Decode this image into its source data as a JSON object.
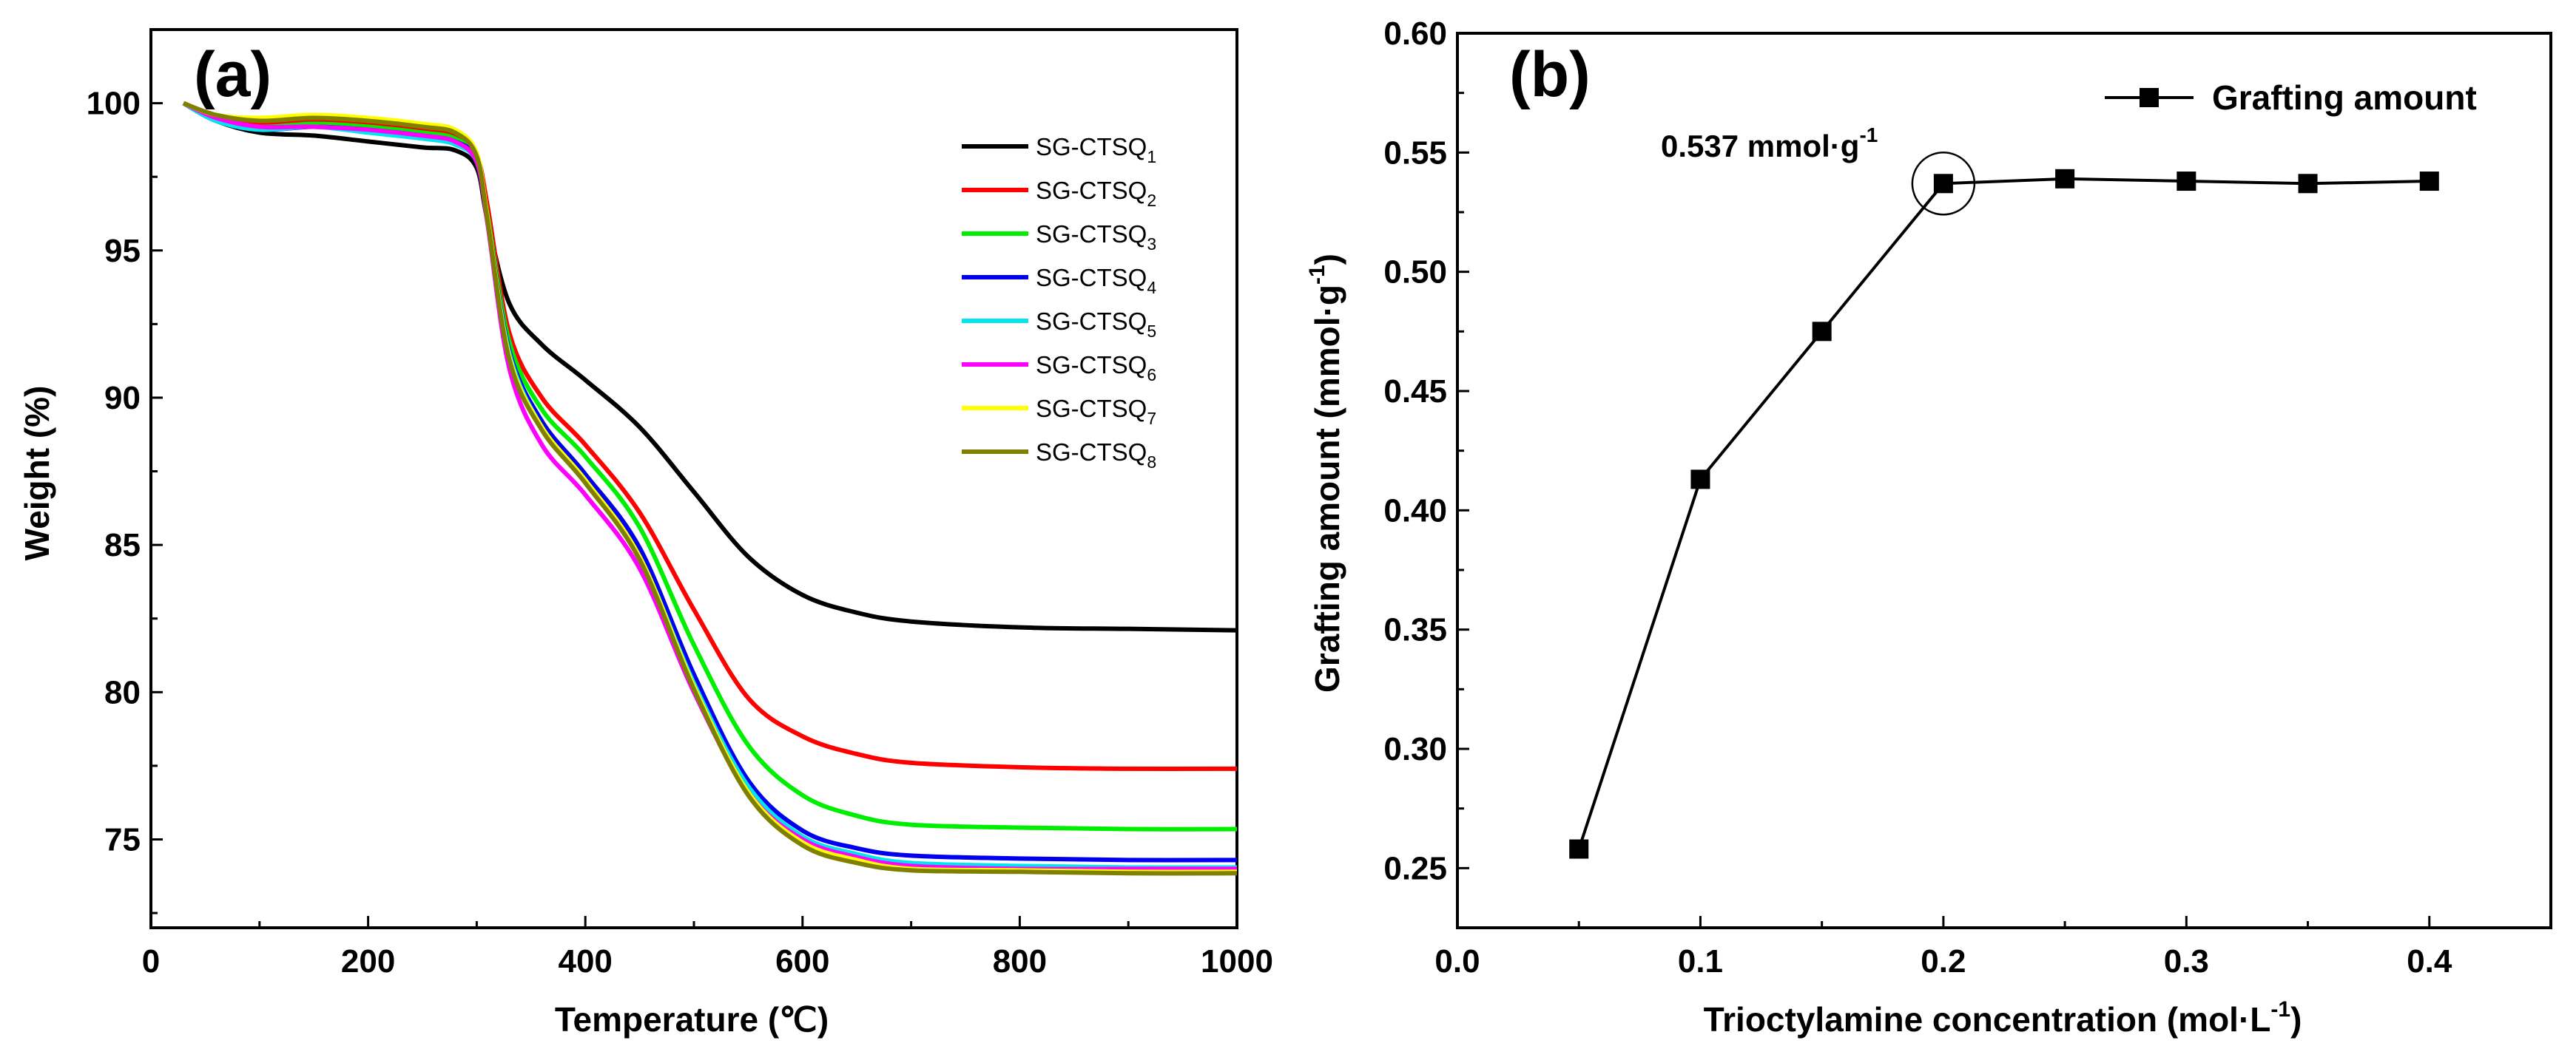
{
  "figure": {
    "panel_a_label": "(a)",
    "panel_b_label": "(b)"
  },
  "chart_data": [
    {
      "type": "line",
      "panel": "(a)",
      "title": "",
      "xlabel": "Temperature (℃)",
      "ylabel": "Weight (%)",
      "xlim": [
        0,
        1000
      ],
      "ylim": [
        72,
        102.5
      ],
      "x_ticks": [
        0,
        200,
        400,
        600,
        800,
        1000
      ],
      "y_ticks": [
        75,
        80,
        85,
        90,
        95,
        100
      ],
      "legend_position": "top-right",
      "x": [
        30,
        60,
        100,
        150,
        200,
        250,
        280,
        300,
        310,
        330,
        360,
        400,
        450,
        500,
        550,
        600,
        650,
        700,
        800,
        900,
        1000
      ],
      "series": [
        {
          "name": "SG-CTSQ",
          "sub": "1",
          "color": "#000000",
          "values": [
            100.0,
            99.4,
            99.0,
            98.9,
            98.7,
            98.5,
            98.4,
            97.8,
            96.0,
            93.2,
            91.8,
            90.6,
            89.0,
            86.8,
            84.6,
            83.3,
            82.7,
            82.4,
            82.2,
            82.15,
            82.1
          ]
        },
        {
          "name": "SG-CTSQ",
          "sub": "2",
          "color": "#ff0000",
          "values": [
            100.0,
            99.5,
            99.3,
            99.4,
            99.3,
            99.1,
            98.9,
            98.2,
            96.5,
            92.2,
            90.0,
            88.4,
            86.1,
            82.8,
            79.8,
            78.5,
            77.9,
            77.6,
            77.45,
            77.4,
            77.4
          ]
        },
        {
          "name": "SG-CTSQ",
          "sub": "3",
          "color": "#00ee00",
          "values": [
            100.0,
            99.5,
            99.2,
            99.3,
            99.2,
            99.0,
            98.8,
            98.1,
            96.2,
            91.9,
            89.6,
            88.0,
            85.6,
            81.6,
            78.2,
            76.5,
            75.8,
            75.5,
            75.4,
            75.35,
            75.35
          ]
        },
        {
          "name": "SG-CTSQ",
          "sub": "4",
          "color": "#0000ee",
          "values": [
            100.0,
            99.4,
            99.1,
            99.2,
            99.1,
            98.9,
            98.7,
            98.1,
            96.1,
            91.6,
            89.2,
            87.4,
            84.9,
            80.6,
            77.0,
            75.3,
            74.7,
            74.45,
            74.35,
            74.3,
            74.3
          ]
        },
        {
          "name": "SG-CTSQ",
          "sub": "5",
          "color": "#00e5ee",
          "values": [
            100.0,
            99.4,
            99.1,
            99.2,
            99.0,
            98.8,
            98.6,
            98.0,
            96.0,
            91.5,
            89.0,
            87.2,
            84.6,
            80.3,
            76.8,
            75.1,
            74.5,
            74.2,
            74.1,
            74.05,
            74.05
          ]
        },
        {
          "name": "SG-CTSQ",
          "sub": "6",
          "color": "#ff00ff",
          "values": [
            100.0,
            99.5,
            99.2,
            99.2,
            99.1,
            98.9,
            98.7,
            98.0,
            95.9,
            91.0,
            88.4,
            86.7,
            84.2,
            80.0,
            76.6,
            75.0,
            74.4,
            74.1,
            74.0,
            74.0,
            74.0
          ]
        },
        {
          "name": "SG-CTSQ",
          "sub": "7",
          "color": "#ffff00",
          "values": [
            100.0,
            99.6,
            99.5,
            99.6,
            99.5,
            99.3,
            99.1,
            98.3,
            96.1,
            91.4,
            89.0,
            87.2,
            84.6,
            80.2,
            76.6,
            74.9,
            74.3,
            74.0,
            73.95,
            73.9,
            73.9
          ]
        },
        {
          "name": "SG-CTSQ",
          "sub": "8",
          "color": "#808000",
          "values": [
            100.0,
            99.6,
            99.4,
            99.5,
            99.4,
            99.2,
            99.0,
            98.2,
            96.0,
            91.3,
            88.9,
            87.1,
            84.5,
            80.1,
            76.5,
            74.8,
            74.2,
            73.95,
            73.9,
            73.85,
            73.85
          ]
        }
      ]
    },
    {
      "type": "line",
      "panel": "(b)",
      "title": "",
      "xlabel_main": "Trioctylamine concentration (mol·L",
      "xlabel_sup": "-1",
      "xlabel_end": ")",
      "ylabel_main": "Grafting amount (mmol·g",
      "ylabel_sup": "-1",
      "ylabel_end": ")",
      "xlim": [
        0.0,
        0.45
      ],
      "ylim": [
        0.225,
        0.6
      ],
      "x_ticks": [
        0.0,
        0.1,
        0.2,
        0.3,
        0.4
      ],
      "x_tick_labels": [
        "0.0",
        "0.1",
        "0.2",
        "0.3",
        "0.4"
      ],
      "y_ticks": [
        0.25,
        0.3,
        0.35,
        0.4,
        0.45,
        0.5,
        0.55,
        0.6
      ],
      "y_tick_labels": [
        "0.25",
        "0.30",
        "0.35",
        "0.40",
        "0.45",
        "0.50",
        "0.55",
        "0.60"
      ],
      "legend_position": "top-right",
      "series": [
        {
          "name": "Grafting amount",
          "color": "#000000",
          "marker": "square",
          "x": [
            0.05,
            0.1,
            0.15,
            0.2,
            0.25,
            0.3,
            0.35,
            0.4
          ],
          "values": [
            0.258,
            0.413,
            0.475,
            0.537,
            0.539,
            0.538,
            0.537,
            0.538
          ]
        }
      ],
      "annotation": {
        "text_main": "0.537 mmol·g",
        "text_sup": "-1",
        "x": 0.2,
        "y": 0.537
      }
    }
  ]
}
